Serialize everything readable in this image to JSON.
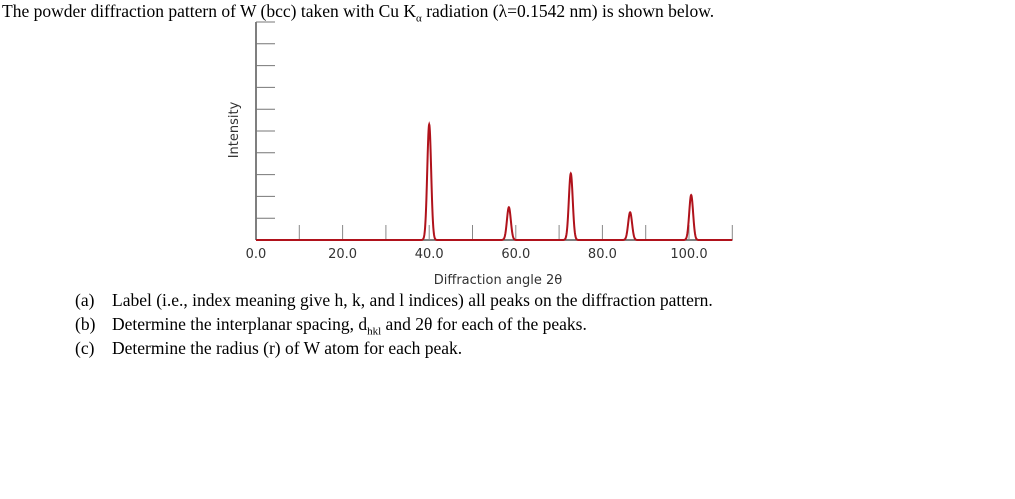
{
  "header": {
    "title_pre": "The powder diffraction pattern of W (bcc) taken with Cu K",
    "title_sub": "α",
    "title_post": " radiation (λ=0.1542 nm) is shown below."
  },
  "questions": [
    {
      "label": "(a)",
      "text": "Label (i.e., index meaning give h, k, and l indices) all peaks on the diffraction pattern."
    },
    {
      "label": "(b)",
      "text_pre": "Determine the interplanar spacing, d",
      "text_sub": "hkl",
      "text_post": " and 2θ for each of the peaks."
    },
    {
      "label": "(c)",
      "text": "Determine the radius (r) of W atom for each peak."
    }
  ],
  "chart_data": {
    "type": "line",
    "title": "",
    "xlabel": "Diffraction angle 2θ",
    "ylabel": "Intensity",
    "xlim": [
      0,
      110
    ],
    "ylim": [
      0,
      10
    ],
    "xticks": [
      "0.0",
      "20.0",
      "40.0",
      "60.0",
      "80.0",
      "100.0"
    ],
    "grid": false,
    "line_color": "#b0121b",
    "peaks": [
      {
        "x": 40.0,
        "y": 5.3
      },
      {
        "x": 58.4,
        "y": 1.5
      },
      {
        "x": 72.7,
        "y": 3.05
      },
      {
        "x": 86.4,
        "y": 1.27
      },
      {
        "x": 100.5,
        "y": 2.06
      }
    ]
  }
}
